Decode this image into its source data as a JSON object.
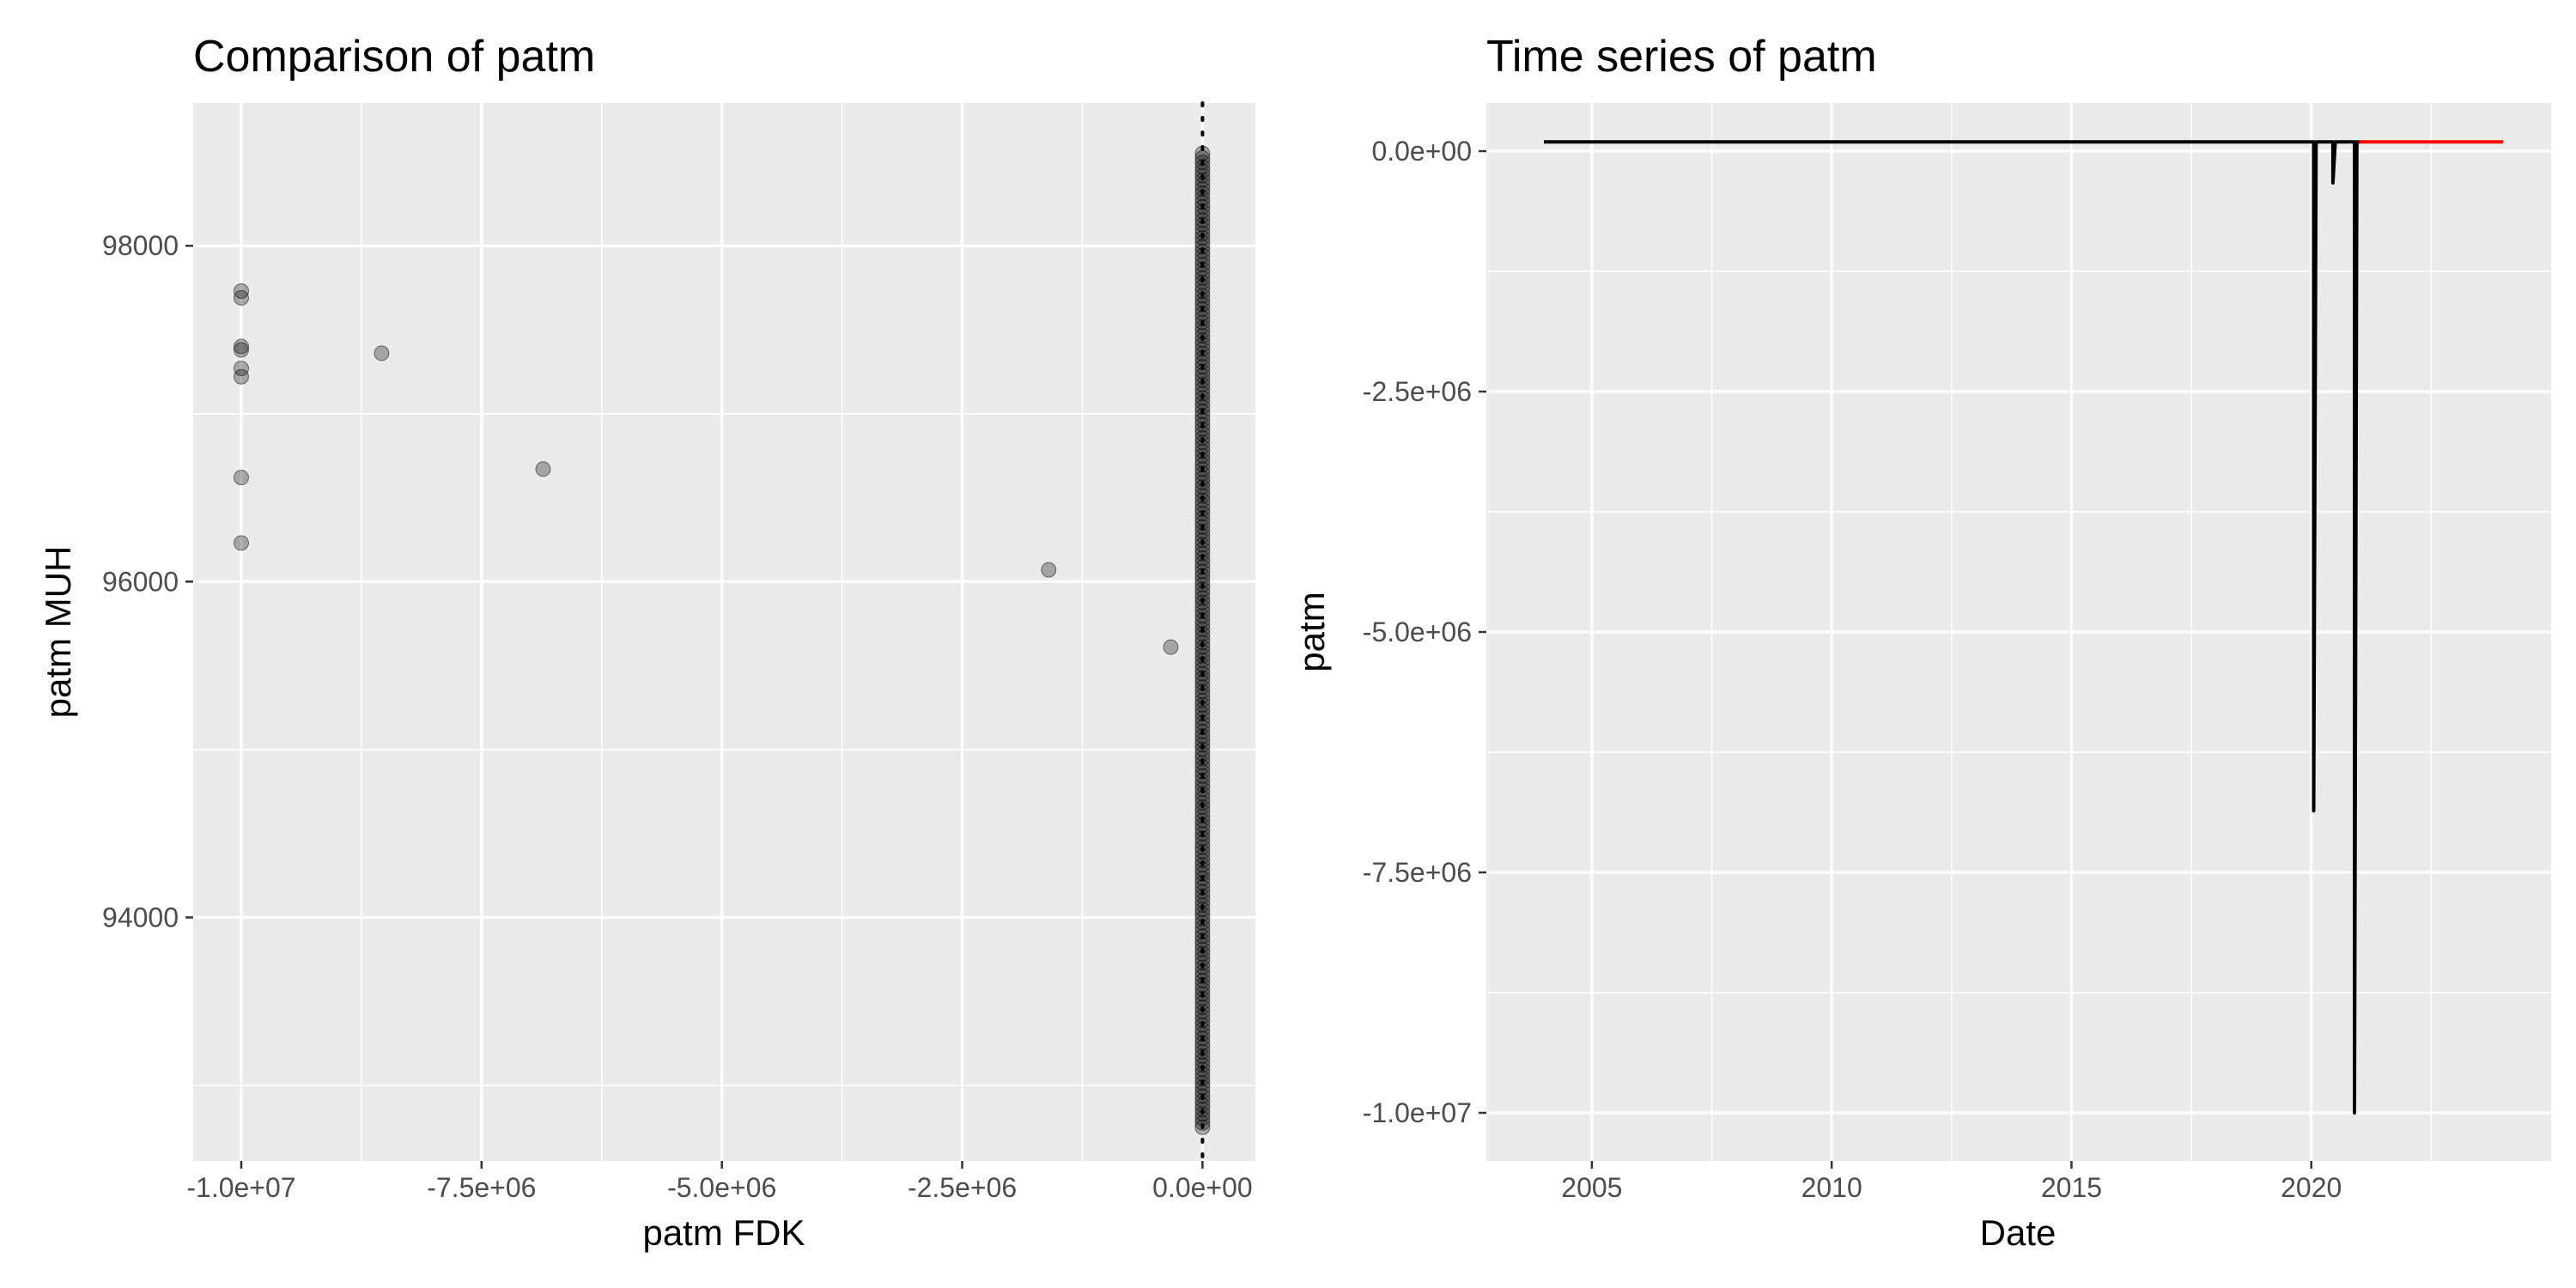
{
  "chart_data": [
    {
      "type": "scatter",
      "title": "Comparison of patm",
      "xlabel": "patm FDK",
      "ylabel": "patm MUH",
      "xlim": [
        -10500000,
        550000
      ],
      "ylim": [
        92550.0,
        98850.0
      ],
      "xticks": [
        -10000000,
        -7500000,
        -5000000,
        -2500000,
        0
      ],
      "xtick_labels": [
        "-1.0e+07",
        "-7.5e+06",
        "-5.0e+06",
        "-2.5e+06",
        "0.0e+00"
      ],
      "yticks": [
        94000,
        96000,
        98000
      ],
      "ytick_labels": [
        "94000",
        "96000",
        "98000"
      ],
      "grid": true,
      "reference_line": {
        "x": 0,
        "style": "dotted"
      },
      "point_color": "#000000",
      "point_alpha": 0.3,
      "points": [
        [
          -10000000,
          97730
        ],
        [
          -10000000,
          97690
        ],
        [
          -10000000,
          97400
        ],
        [
          -10000000,
          97380
        ],
        [
          -10000000,
          97270
        ],
        [
          -10000000,
          97220
        ],
        [
          -10000000,
          96620
        ],
        [
          -10000000,
          96230
        ],
        [
          -8540000,
          97360
        ],
        [
          -6860000,
          96670
        ],
        [
          -1600000,
          96070
        ],
        [
          -330000,
          95610
        ]
      ],
      "dense_cluster": {
        "x": 0,
        "y_min": 92750,
        "y_max": 98550,
        "n": 220
      }
    },
    {
      "type": "line",
      "title": "Time series of patm",
      "xlabel": "Date",
      "ylabel": "patm",
      "xlim": [
        2002.8,
        2025.0
      ],
      "ylim": [
        -10500000,
        500000
      ],
      "xticks": [
        2005,
        2010,
        2015,
        2020
      ],
      "xtick_labels": [
        "2005",
        "2010",
        "2015",
        "2020"
      ],
      "yticks": [
        0,
        -2500000,
        -5000000,
        -7500000,
        -10000000
      ],
      "ytick_labels": [
        "0.0e+00",
        "-2.5e+06",
        "-5.0e+06",
        "-7.5e+06",
        "-1.0e+07"
      ],
      "grid": true,
      "series": [
        {
          "color": "#000000",
          "x": [
            2004.0,
            2020.05,
            2020.05,
            2020.1,
            2020.45,
            2020.45,
            2020.5,
            2020.9,
            2020.9,
            2020.95,
            2021.0
          ],
          "y": [
            96000,
            96000,
            -6860000,
            96000,
            96000,
            -330000,
            96000,
            96000,
            -10000000,
            96000,
            96000
          ]
        },
        {
          "color": "#ff0000",
          "x": [
            2021.0,
            2024.0
          ],
          "y": [
            96000,
            96000
          ]
        }
      ]
    }
  ]
}
